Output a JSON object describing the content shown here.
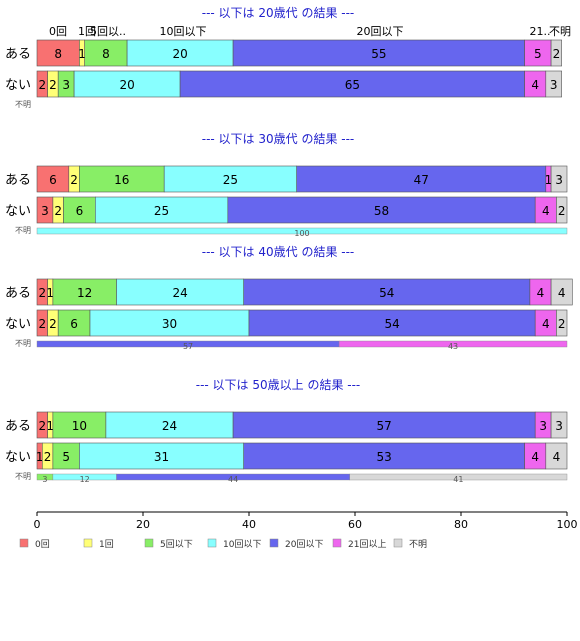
{
  "chart_data": {
    "type": "bar",
    "orientation": "horizontal",
    "stacked": true,
    "xlim": [
      0,
      100
    ],
    "xticks": [
      "0",
      "20",
      "40",
      "60",
      "80",
      "100"
    ],
    "grid": false,
    "legend_position": "bottom",
    "categories": [
      "0回",
      "1回",
      "5回以下",
      "10回以下",
      "20回以下",
      "21回以上",
      "不明"
    ],
    "header_labels": [
      "0回",
      "1回",
      "5回以..",
      "10回以下",
      "20回以下",
      "21..",
      "不明"
    ],
    "colors": [
      "#f87171",
      "#ffff77",
      "#88ee66",
      "#88ffff",
      "#6666ee",
      "#ee66ee",
      "#d8d8d8"
    ],
    "panels": [
      {
        "title": "--- 以下は 20歳代 の結果 ---",
        "rows": [
          {
            "label": "ある",
            "values": [
              8,
              1,
              8,
              20,
              55,
              5,
              2
            ]
          },
          {
            "label": "ない",
            "values": [
              2,
              2,
              3,
              20,
              65,
              4,
              3
            ]
          }
        ],
        "unknown": {
          "label": "不明",
          "values": []
        }
      },
      {
        "title": "--- 以下は 30歳代 の結果 ---",
        "rows": [
          {
            "label": "ある",
            "values": [
              6,
              2,
              16,
              25,
              47,
              1,
              3
            ]
          },
          {
            "label": "ない",
            "values": [
              3,
              2,
              6,
              25,
              58,
              4,
              2
            ]
          }
        ],
        "unknown": {
          "label": "不明",
          "values": [
            0,
            0,
            0,
            100,
            0,
            0,
            0
          ]
        }
      },
      {
        "title": "--- 以下は 40歳代 の結果 ---",
        "rows": [
          {
            "label": "ある",
            "values": [
              2,
              1,
              12,
              24,
              54,
              4,
              4
            ]
          },
          {
            "label": "ない",
            "values": [
              2,
              2,
              6,
              30,
              54,
              4,
              2
            ]
          }
        ],
        "unknown": {
          "label": "不明",
          "values": [
            0,
            0,
            0,
            0,
            57,
            43,
            0
          ]
        }
      },
      {
        "title": "--- 以下は 50歳以上 の結果 ---",
        "rows": [
          {
            "label": "ある",
            "values": [
              2,
              1,
              10,
              24,
              57,
              3,
              3
            ]
          },
          {
            "label": "ない",
            "values": [
              1,
              2,
              5,
              31,
              53,
              4,
              4
            ]
          }
        ],
        "unknown": {
          "label": "不明",
          "values": [
            0,
            0,
            3,
            12,
            44,
            0,
            41
          ]
        }
      }
    ]
  }
}
